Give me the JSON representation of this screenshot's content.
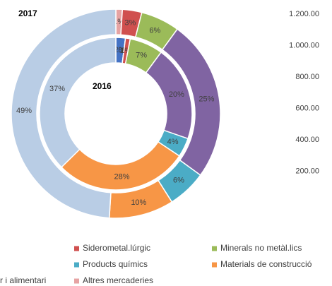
{
  "chart_data": [
    {
      "type": "pie",
      "categories": [
        "r i alimentari",
        "Altres mercaderies",
        "Siderometal.lúrgic",
        "Minerals no metàl.lics",
        null,
        "Products químics",
        "Materials de construcció",
        null
      ],
      "colors": [
        "#4472c4",
        "#e6a3a3",
        "#d0504f",
        "#9bbb59",
        "#8064a2",
        "#4bacc6",
        "#f79646",
        "#b9cde5"
      ],
      "series": [
        {
          "name": "2016",
          "values": [
            2,
            0,
            1,
            7,
            20,
            4,
            28,
            37
          ],
          "value_labels": [
            "2%",
            "0%",
            "1%",
            "7%",
            "20%",
            "4%",
            "28%",
            "37%"
          ]
        },
        {
          "name": "2017",
          "values": [
            0,
            1,
            3,
            6,
            25,
            6,
            10,
            49
          ],
          "value_labels": [
            "0%",
            "1%",
            "3%",
            "6%",
            "25%",
            "6%",
            "10%",
            "49%"
          ]
        }
      ]
    },
    {
      "type": "bar",
      "ylim": [
        0,
        1200
      ],
      "yticks": [
        {
          "value": 200,
          "label": "200.00"
        },
        {
          "value": 400,
          "label": "400.00"
        },
        {
          "value": 600,
          "label": "600.00"
        },
        {
          "value": 800,
          "label": "800.00"
        },
        {
          "value": 1000,
          "label": "1.000.00"
        },
        {
          "value": 1200,
          "label": "1.200.00"
        }
      ]
    }
  ]
}
